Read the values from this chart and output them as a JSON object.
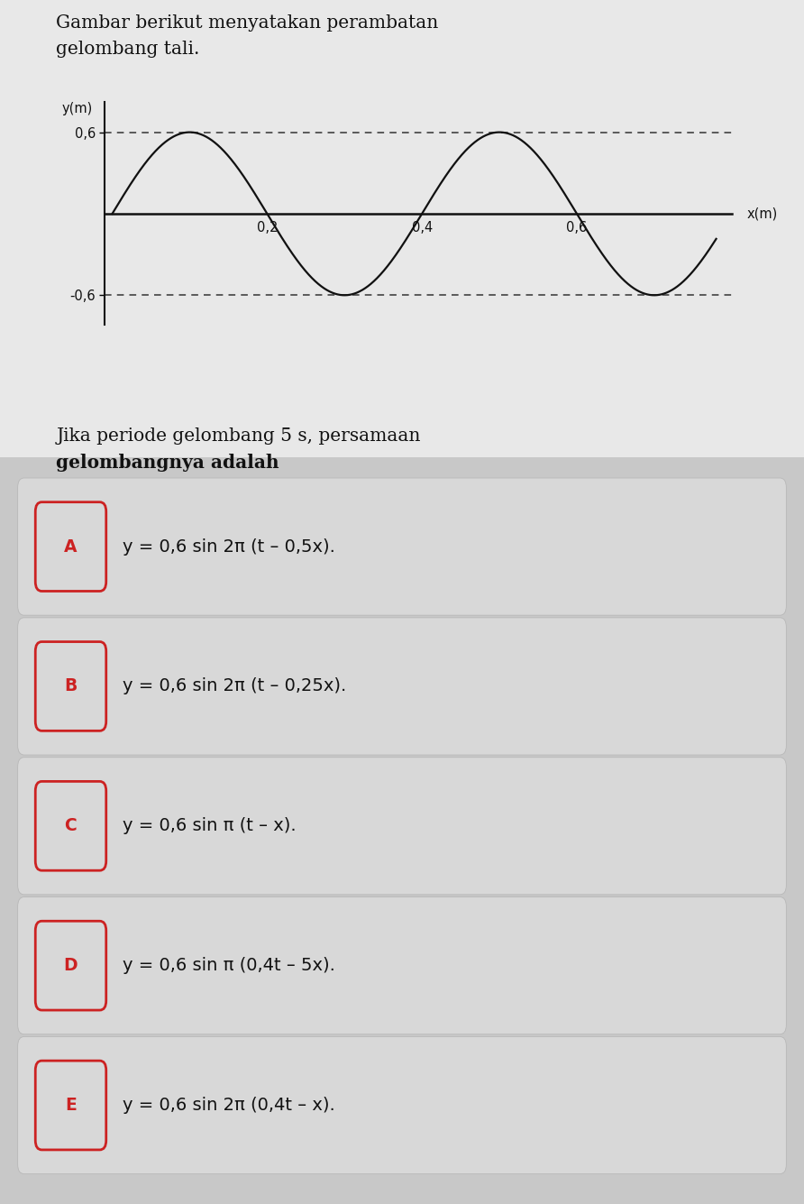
{
  "title_line1": "Gambar berikut menyatakan perambatan",
  "title_line2": "gelombang tali.",
  "graph_ylabel": "y(m)",
  "graph_xlabel": "x(m)",
  "amplitude": 0.6,
  "wavelength": 0.4,
  "question_line1": "Jika periode gelombang 5 s, persamaan",
  "question_line2": "gelombangnya adalah",
  "options": [
    {
      "label": "A",
      "text": "y = 0,6 sin 2π (t – 0,5x)."
    },
    {
      "label": "B",
      "text": "y = 0,6 sin 2π (t – 0,25x)."
    },
    {
      "label": "C",
      "text": "y = 0,6 sin π (t – x)."
    },
    {
      "label": "D",
      "text": "y = 0,6 sin π (0,4t – 5x)."
    },
    {
      "label": "E",
      "text": "y = 0,6 sin 2π (0,4t – x)."
    }
  ],
  "bg_color": "#c8c8c8",
  "top_bg_color": "#e8e8e8",
  "card_color": "#dcdcdc",
  "label_border_color": "#cc2222",
  "label_text_color": "#cc2222",
  "text_color": "#111111",
  "wave_color": "#111111",
  "dashed_color": "#333333",
  "axis_color": "#111111"
}
